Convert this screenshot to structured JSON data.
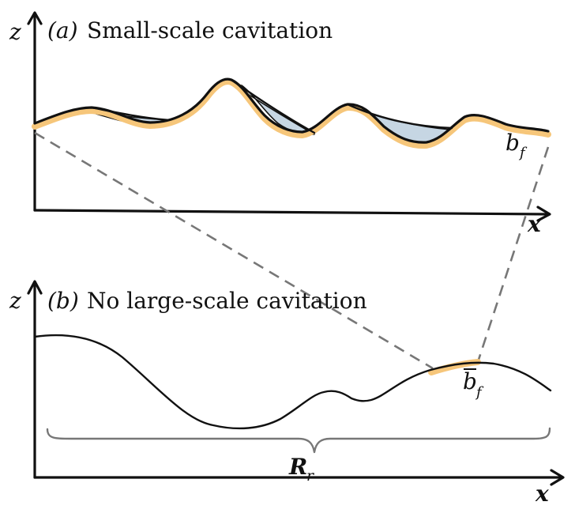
{
  "panel_a": {
    "tag": "(a)",
    "title": "Small-scale cavitation",
    "z_label": "z",
    "x_label": "x",
    "b_label": "b",
    "b_sub": "f"
  },
  "panel_b": {
    "tag": "(b)",
    "title": "No large-scale cavitation",
    "z_label": "z",
    "x_label": "x",
    "b_label": "b",
    "b_sub": "f",
    "r_label": "R",
    "r_sub": "r"
  },
  "colors": {
    "bed_highlight": "#f6c67a",
    "cavity_fill": "#c6d6e3",
    "connector": "#777777"
  }
}
